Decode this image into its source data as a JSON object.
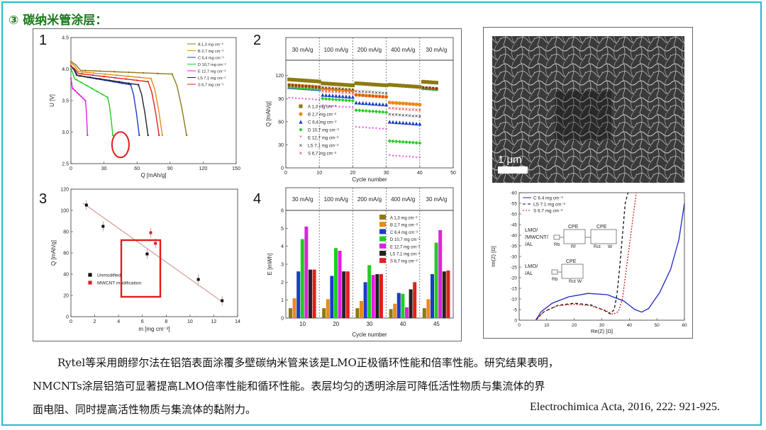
{
  "header": {
    "title": "③ 碳纳米管涂层："
  },
  "figure_left": {
    "panel_numbers": [
      "1",
      "2",
      "3",
      "4"
    ],
    "annotation_circle_color": "#e21c1c",
    "annotation_box_color": "#e21c1c"
  },
  "sem": {
    "scale_label": "1 μm"
  },
  "paragraph": {
    "line1": "Rytel等采用朗缪尔法在铝箔表面涂覆多壁碳纳米管来该是LMO正极循环性能和倍率性能。研究结果表明，",
    "line2": "NMCNTs涂层铝箔可显著提高LMO倍率性能和循环性能。表层均匀的透明涂层可降低活性物质与集流体的界",
    "line3": "面电阻、同时提高活性物质与集流体的黏附力。"
  },
  "citation": "Electrochimica Acta, 2016, 222: 921-925.",
  "chart_data": [
    {
      "id": "p1",
      "type": "line",
      "xlabel": "Q [mAh/g]",
      "ylabel": "U [V]",
      "xlim": [
        0,
        150
      ],
      "ylim": [
        2.5,
        4.5
      ],
      "xticks": [
        0,
        30,
        60,
        90,
        120,
        150
      ],
      "yticks": [
        2.5,
        3.0,
        3.5,
        4.0,
        4.5
      ],
      "legend_position": "top-right",
      "series": [
        {
          "name": "A 1,3 mg cm⁻²",
          "color": "#8c7a12",
          "end": 105,
          "start_v": 4.12,
          "mid_v": 3.98,
          "knee_v": 3.92
        },
        {
          "name": "B 2,7 mg cm⁻²",
          "color": "#e88a1c",
          "end": 83,
          "start_v": 4.1,
          "mid_v": 3.96,
          "knee_v": 3.85
        },
        {
          "name": "C 6,4 mg cm⁻²",
          "color": "#1a3cc8",
          "end": 62,
          "start_v": 4.05,
          "mid_v": 3.9,
          "knee_v": 3.75
        },
        {
          "name": "D 10,7 mg cm⁻²",
          "color": "#22cc22",
          "end": 38,
          "start_v": 4.0,
          "mid_v": 3.85,
          "knee_v": 3.55
        },
        {
          "name": "E 12,7 mg cm⁻²",
          "color": "#e020e0",
          "end": 15,
          "start_v": 3.85,
          "mid_v": 3.7,
          "knee_v": 3.5
        },
        {
          "name": "LS 7,1 mg cm⁻²",
          "color": "#222222",
          "end": 70,
          "start_v": 4.05,
          "mid_v": 3.9,
          "knee_v": 3.75
        },
        {
          "name": "S 6,7 mg cm⁻²",
          "color": "#e02020",
          "end": 80,
          "start_v": 4.05,
          "mid_v": 3.93,
          "knee_v": 3.8
        }
      ],
      "end_v": 2.95
    },
    {
      "id": "p2",
      "type": "scatter",
      "xlabel": "Cycle number",
      "ylabel": "Q [mAh/g]",
      "xlim": [
        0,
        50
      ],
      "ylim": [
        0,
        140
      ],
      "xticks": [
        0,
        10,
        20,
        30,
        40,
        50
      ],
      "yticks": [
        0,
        30,
        60,
        90,
        120
      ],
      "rate_labels": [
        "30 mA/g",
        "100 mA/g",
        "200 mA/g",
        "400 mA/g",
        "30 mA/g"
      ],
      "legend_position": "bottom-left",
      "series": [
        {
          "name": "A 1,3 mg cm⁻²",
          "color": "#8c7a12",
          "marker": "square",
          "levels": [
            115,
            110,
            110,
            108,
            112
          ]
        },
        {
          "name": "B 2,7 mg cm⁻²",
          "color": "#e88a1c",
          "marker": "circle",
          "levels": [
            108,
            103,
            95,
            85,
            104
          ]
        },
        {
          "name": "C 6,4 mg cm⁻²",
          "color": "#1a3cc8",
          "marker": "triangle",
          "levels": [
            105,
            95,
            85,
            60,
            104
          ]
        },
        {
          "name": "D 10,7 mg cm⁻²",
          "color": "#22cc22",
          "marker": "diamond",
          "levels": [
            105,
            90,
            75,
            35,
            103
          ]
        },
        {
          "name": "E 12,7 mg cm⁻²",
          "color": "#e020e0",
          "marker": "star",
          "levels": [
            90,
            80,
            52,
            15,
            103
          ]
        },
        {
          "name": "LS 7,1 mg cm⁻²",
          "color": "#222222",
          "marker": "x",
          "levels": [
            108,
            105,
            100,
            70,
            105
          ]
        },
        {
          "name": "S 6,7 mg cm⁻²",
          "color": "#e02020",
          "marker": "x",
          "levels": [
            107,
            100,
            95,
            78,
            104
          ]
        }
      ]
    },
    {
      "id": "p3",
      "type": "scatter",
      "xlabel": "m [mg cm⁻²]",
      "ylabel": "Q [mAh/g]",
      "xlim": [
        0,
        14
      ],
      "ylim": [
        0,
        120
      ],
      "xticks": [
        0,
        2,
        4,
        6,
        8,
        10,
        12,
        14
      ],
      "yticks": [
        0,
        20,
        40,
        60,
        80,
        100,
        120
      ],
      "series": [
        {
          "name": "Unmodified",
          "color": "#111111",
          "points": [
            [
              1.3,
              105
            ],
            [
              2.7,
              85
            ],
            [
              6.4,
              59
            ],
            [
              10.7,
              35
            ],
            [
              12.7,
              15
            ]
          ]
        },
        {
          "name": "MWCNT modification",
          "color": "#e02020",
          "points": [
            [
              6.7,
              79
            ],
            [
              7.1,
              69
            ]
          ]
        }
      ],
      "fit_line": [
        [
          1.0,
          107
        ],
        [
          12.7,
          14
        ]
      ]
    },
    {
      "id": "p4",
      "type": "bar",
      "xlabel": "Cycle number",
      "ylabel": "E [mWh]",
      "ylim": [
        0,
        6
      ],
      "yticks": [
        0,
        1,
        2,
        3,
        4,
        5,
        6
      ],
      "categories": [
        "10",
        "20",
        "30",
        "40",
        "45"
      ],
      "rate_labels": [
        "30 mA/g",
        "100 mA/g",
        "200 mA/g",
        "400 mA/g",
        "30 mA/g"
      ],
      "legend_position": "top-right",
      "series": [
        {
          "name": "A 1,3 mg cm⁻²",
          "color": "#8c7a12",
          "values": [
            0.55,
            0.55,
            0.55,
            0.5,
            0.55
          ]
        },
        {
          "name": "B 2,7 mg cm⁻²",
          "color": "#e88a1c",
          "values": [
            1.1,
            1.05,
            0.95,
            0.8,
            1.05
          ]
        },
        {
          "name": "C 6,4 mg cm⁻²",
          "color": "#1a3cc8",
          "values": [
            2.6,
            2.35,
            2.0,
            1.4,
            2.45
          ]
        },
        {
          "name": "D 10,7 mg cm⁻²",
          "color": "#22cc22",
          "values": [
            4.4,
            3.9,
            2.95,
            1.35,
            4.2
          ]
        },
        {
          "name": "E 12,7 mg cm⁻²",
          "color": "#e020e0",
          "values": [
            5.1,
            3.75,
            2.4,
            0.6,
            4.9
          ]
        },
        {
          "name": "LS 7,1 mg cm⁻²",
          "color": "#222222",
          "values": [
            2.7,
            2.6,
            2.45,
            1.6,
            2.6
          ]
        },
        {
          "name": "S 6,7 mg cm⁻²",
          "color": "#e02020",
          "values": [
            2.7,
            2.6,
            2.45,
            2.0,
            2.65
          ]
        }
      ]
    },
    {
      "id": "p5",
      "type": "line",
      "xlabel": "Re(Z) [Ω]",
      "ylabel": "Im(Z) [Ω]",
      "xlim": [
        0,
        60
      ],
      "ylim": [
        0,
        -60
      ],
      "xticks": [
        0,
        10,
        20,
        30,
        40,
        50,
        60
      ],
      "yticks": [
        0,
        -5,
        -10,
        -15,
        -20,
        -25,
        -30,
        -35,
        -40,
        -45,
        -50,
        -55,
        -60
      ],
      "legend_position": "top-left",
      "series": [
        {
          "name": "C 6.4 mg cm⁻²",
          "color": "#1a2ac0",
          "dash": "",
          "points": [
            [
              6,
              0
            ],
            [
              8,
              -4
            ],
            [
              12,
              -8
            ],
            [
              18,
              -11
            ],
            [
              25,
              -12.6
            ],
            [
              32,
              -12
            ],
            [
              38,
              -9
            ],
            [
              42,
              -5
            ],
            [
              44.5,
              -3.8
            ],
            [
              47,
              -5.5
            ],
            [
              51,
              -13
            ],
            [
              55,
              -24
            ],
            [
              58,
              -38
            ],
            [
              60,
              -55
            ]
          ]
        },
        {
          "name": "LS 7.1 mg cm⁻²",
          "color": "#111111",
          "dash": "4,3",
          "points": [
            [
              6,
              0
            ],
            [
              9,
              -4
            ],
            [
              14,
              -7
            ],
            [
              20,
              -8
            ],
            [
              26,
              -7.2
            ],
            [
              31,
              -4.5
            ],
            [
              33,
              -3
            ],
            [
              34.5,
              -5
            ],
            [
              35.5,
              -12
            ],
            [
              36.5,
              -25
            ],
            [
              37.5,
              -40
            ],
            [
              38.5,
              -55
            ],
            [
              39.5,
              -60
            ]
          ]
        },
        {
          "name": "S 6.7 mg cm⁻²",
          "color": "#c82020",
          "dash": "2,2",
          "points": [
            [
              6,
              0
            ],
            [
              9,
              -4
            ],
            [
              14,
              -6.8
            ],
            [
              20,
              -7.5
            ],
            [
              26,
              -6.8
            ],
            [
              31,
              -4.8
            ],
            [
              34,
              -2.8
            ],
            [
              36,
              -4
            ],
            [
              37.5,
              -10
            ],
            [
              38.5,
              -20
            ],
            [
              40,
              -35
            ],
            [
              41.5,
              -50
            ],
            [
              42.5,
              -60
            ]
          ]
        }
      ],
      "circuit_labels": {
        "top": "LMO/\n/MWCNT/\n/AL",
        "bottom": "LMO/\n/AL",
        "cpe": "CPE",
        "rb": "Rb",
        "rf": "Rf",
        "rct": "Rct",
        "w": "W"
      }
    }
  ]
}
